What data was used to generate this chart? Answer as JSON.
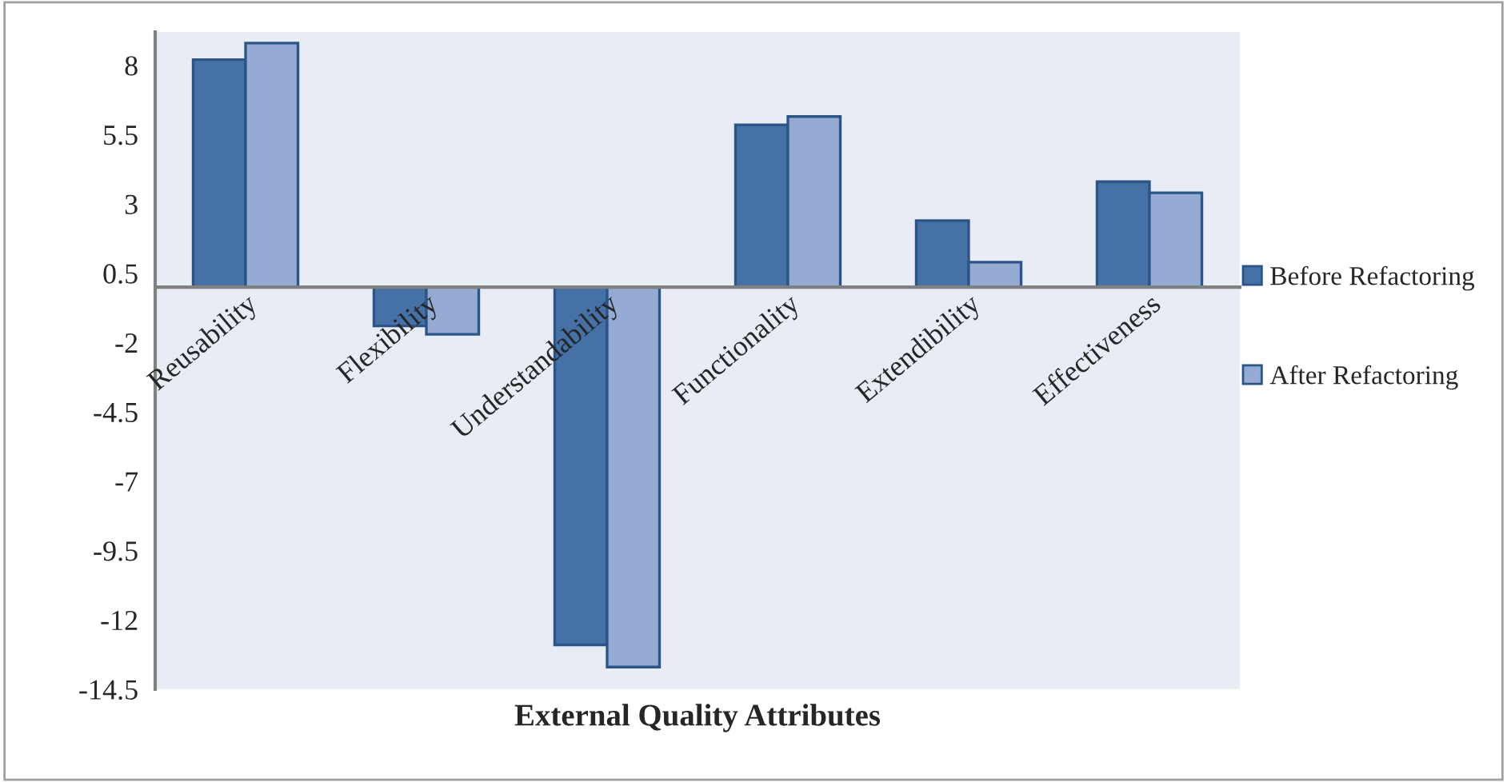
{
  "chart_data": {
    "type": "bar",
    "xlabel": "External Quality Attributes",
    "categories": [
      "Reusability",
      "Flexibility",
      "Understandability",
      "Functionality",
      "Extendibility",
      "Effectiveness"
    ],
    "series": [
      {
        "name": "Before Refactoring",
        "color": "#4571a7",
        "values": [
          8.2,
          -1.4,
          -12.9,
          5.85,
          2.4,
          3.8
        ]
      },
      {
        "name": "After Refactoring",
        "color": "#95abd3",
        "values": [
          8.8,
          -1.7,
          -13.7,
          6.15,
          0.9,
          3.4
        ]
      }
    ],
    "ylim": [
      -14.5,
      9.2
    ],
    "yticks": [
      8,
      5.5,
      3,
      0.5,
      -2,
      -4.5,
      -7,
      -9.5,
      -12,
      -14.5
    ],
    "grid": false,
    "legend": "right"
  }
}
